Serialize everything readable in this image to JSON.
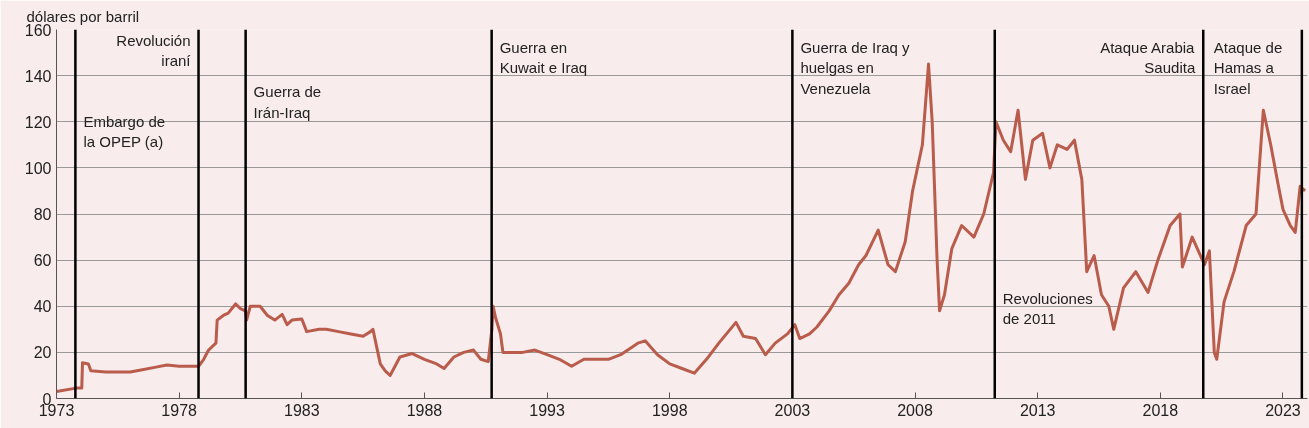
{
  "chart_data": {
    "type": "line",
    "ylabel": "dólares por barril",
    "xlim": [
      1973,
      2024
    ],
    "xticks": [
      1973,
      1978,
      1983,
      1988,
      1993,
      1998,
      2003,
      2008,
      2013,
      2018,
      2023
    ],
    "ylim": [
      0,
      160
    ],
    "yticks": [
      0,
      20,
      40,
      60,
      80,
      100,
      120,
      140,
      160
    ],
    "grid": "y",
    "series": [
      {
        "color": "#b95c4b",
        "x": [
          1973.0,
          1973.8,
          1974.03,
          1974.06,
          1974.3,
          1974.4,
          1975,
          1976,
          1976.5,
          1977,
          1977.5,
          1978,
          1978.8,
          1979.0,
          1979.2,
          1979.4,
          1979.5,
          1979.55,
          1979.8,
          1980.0,
          1980.3,
          1980.5,
          1980.7,
          1980.75,
          1980.9,
          1981.3,
          1981.6,
          1981.9,
          1982.2,
          1982.4,
          1982.6,
          1983.0,
          1983.2,
          1983.7,
          1984.0,
          1984.5,
          1985.0,
          1985.5,
          1985.8,
          1985.9,
          1986.0,
          1986.2,
          1986.4,
          1986.6,
          1986.8,
          1987.0,
          1987.5,
          1988.0,
          1988.5,
          1988.8,
          1989.2,
          1989.6,
          1990.0,
          1990.3,
          1990.6,
          1990.75,
          1990.8,
          1990.9,
          1991.1,
          1991.2,
          1991.5,
          1992,
          1992.5,
          1993,
          1993.5,
          1994,
          1994.5,
          1995,
          1995.5,
          1996,
          1996.7,
          1997,
          1997.5,
          1998,
          1998.5,
          1999.0,
          1999.5,
          2000,
          2000.7,
          2001,
          2001.5,
          2001.9,
          2002.3,
          2002.8,
          2003.1,
          2003.3,
          2003.7,
          2004,
          2004.5,
          2004.9,
          2005.3,
          2005.7,
          2006.0,
          2006.5,
          2006.9,
          2007.2,
          2007.6,
          2007.9,
          2008.3,
          2008.55,
          2008.7,
          2008.9,
          2009.0,
          2009.2,
          2009.5,
          2009.9,
          2010.4,
          2010.8,
          2011.2,
          2011.3,
          2011.6,
          2011.9,
          2012.2,
          2012.5,
          2012.8,
          2013.2,
          2013.5,
          2013.8,
          2014.2,
          2014.5,
          2014.8,
          2015.0,
          2015.3,
          2015.6,
          2015.9,
          2016.1,
          2016.5,
          2017.0,
          2017.5,
          2017.9,
          2018.4,
          2018.8,
          2018.9,
          2019.3,
          2019.8,
          2020.0,
          2020.2,
          2020.3,
          2020.6,
          2021,
          2021.5,
          2021.9,
          2022.2,
          2022.5,
          2022.8,
          2023.0,
          2023.3,
          2023.5,
          2023.7,
          2023.9
        ],
        "values": [
          3,
          4.5,
          4.5,
          15.5,
          15,
          12,
          11.5,
          11.5,
          12.5,
          13.5,
          14.5,
          14,
          14,
          17,
          21,
          23,
          24,
          34,
          36,
          37,
          41,
          39,
          38,
          34,
          40,
          40,
          36,
          34,
          36.5,
          32,
          34,
          34.5,
          29,
          30,
          30,
          29,
          28,
          27,
          29,
          30,
          25,
          15,
          12,
          10,
          14,
          18,
          19.5,
          17,
          15,
          13,
          18,
          20,
          21,
          17,
          16,
          30,
          40,
          35,
          28,
          20,
          20,
          20,
          21,
          19,
          17,
          14,
          17,
          17,
          17,
          19,
          24,
          25,
          19,
          15,
          13,
          11,
          17,
          24,
          33,
          27,
          26,
          19,
          24,
          28,
          32,
          26,
          28,
          31,
          38,
          45,
          50,
          58,
          62,
          73,
          58,
          55,
          68,
          90,
          110,
          145,
          120,
          60,
          38,
          45,
          65,
          75,
          70,
          80,
          98,
          120,
          112,
          107,
          125,
          95,
          112,
          115,
          100,
          110,
          108,
          112,
          95,
          55,
          62,
          45,
          40,
          30,
          48,
          55,
          46,
          60,
          75,
          80,
          57,
          70,
          58,
          64,
          20,
          17,
          42,
          55,
          75,
          80,
          125,
          110,
          93,
          82,
          75,
          72,
          92,
          90
        ]
      }
    ],
    "ref_lines": [
      {
        "axis": "x",
        "value": 1973.77,
        "label": "Embargo de\nla OPEP (a)",
        "color": "#000000"
      },
      {
        "axis": "x",
        "value": 1978.79,
        "label": "Revolución\niraní",
        "color": "#000000"
      },
      {
        "axis": "x",
        "value": 1980.71,
        "label": "Guerra de\nIrán-Iraq",
        "color": "#000000"
      },
      {
        "axis": "x",
        "value": 1990.74,
        "label": "Guerra en\nKuwait e Iraq",
        "color": "#000000"
      },
      {
        "axis": "x",
        "value": 2003.0,
        "label": "Guerra de Iraq y\nhuelgas en\nVenezuela",
        "color": "#000000"
      },
      {
        "axis": "x",
        "value": 2011.25,
        "label": "Revoluciones\nde 2011",
        "color": "#000000"
      },
      {
        "axis": "x",
        "value": 2019.75,
        "label": "Ataque Arabia\nSaudita",
        "color": "#000000"
      },
      {
        "axis": "x",
        "value": 2023.77,
        "label": "Ataque de\nHamas a\nIsrael",
        "color": "#000000"
      }
    ]
  }
}
